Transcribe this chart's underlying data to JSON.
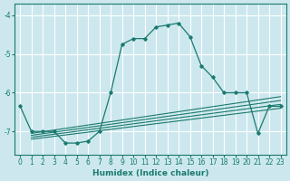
{
  "xlabel": "Humidex (Indice chaleur)",
  "ylabel": "",
  "xlim": [
    -0.5,
    23.5
  ],
  "ylim": [
    -7.6,
    -3.7
  ],
  "yticks": [
    -7,
    -6,
    -5,
    -4
  ],
  "xticks": [
    0,
    1,
    2,
    3,
    4,
    5,
    6,
    7,
    8,
    9,
    10,
    11,
    12,
    13,
    14,
    15,
    16,
    17,
    18,
    19,
    20,
    21,
    22,
    23
  ],
  "background_color": "#cce8ee",
  "grid_color": "#ffffff",
  "line_color": "#1a7a6e",
  "main_y": [
    -6.35,
    -7.0,
    -7.0,
    -7.0,
    -7.3,
    -7.3,
    -7.25,
    -7.0,
    -6.0,
    -4.75,
    -4.6,
    -4.6,
    -4.3,
    -4.25,
    -4.2,
    -4.55,
    -5.3,
    -5.6,
    -6.0,
    -6.0,
    -6.0,
    -7.05,
    -6.35,
    -6.35
  ],
  "trend_lines": [
    {
      "x0": 1,
      "y0": -7.05,
      "x1": 23,
      "y1": -6.1
    },
    {
      "x0": 1,
      "y0": -7.1,
      "x1": 23,
      "y1": -6.2
    },
    {
      "x0": 1,
      "y0": -7.15,
      "x1": 23,
      "y1": -6.3
    },
    {
      "x0": 1,
      "y0": -7.2,
      "x1": 23,
      "y1": -6.4
    }
  ]
}
